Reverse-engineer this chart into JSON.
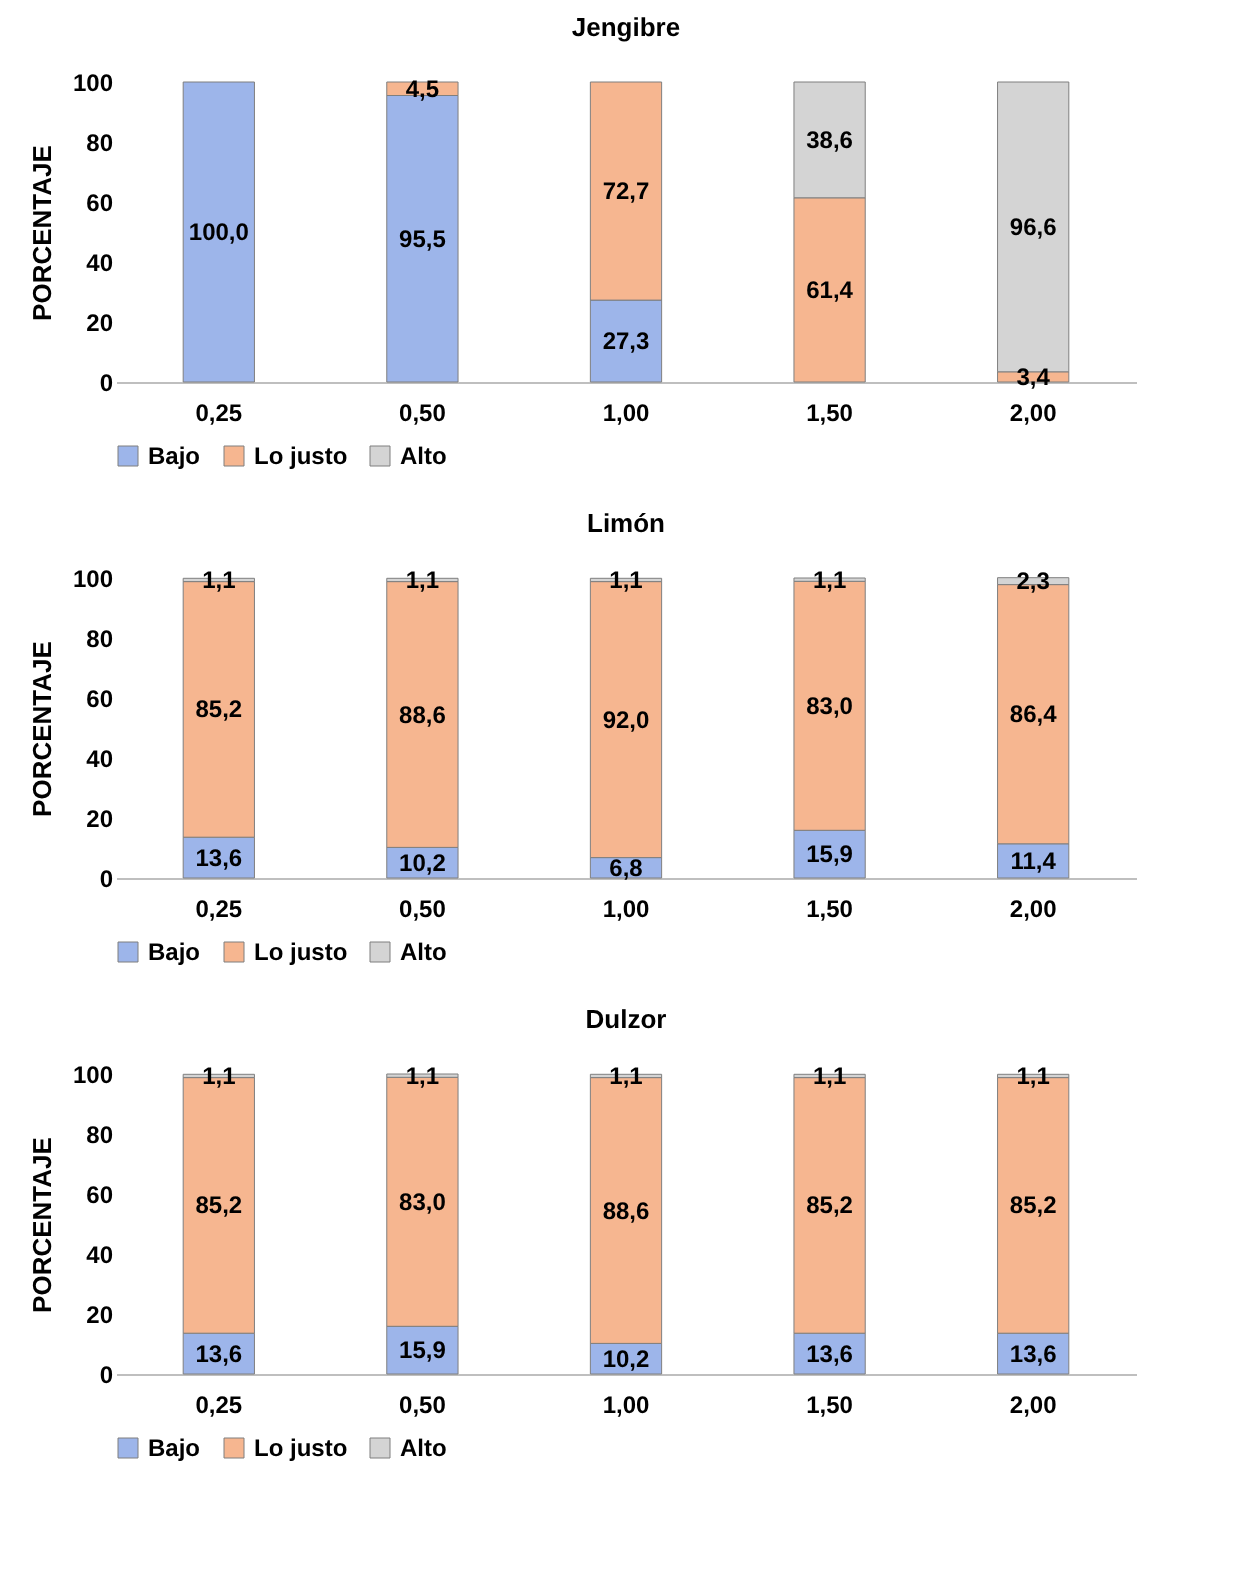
{
  "chart_data": [
    {
      "type": "bar",
      "title": "Jengibre",
      "ylabel": "PORCENTAJE",
      "categories": [
        "0,25",
        "0,50",
        "1,00",
        "1,50",
        "2,00"
      ],
      "stacked": true,
      "ylim": [
        0,
        100
      ],
      "yticks": [
        0,
        20,
        40,
        60,
        80,
        100
      ],
      "grid": false,
      "legend": "bottom",
      "series": [
        {
          "name": "Bajo",
          "color": "#9db5ea",
          "values": [
            100.0,
            95.5,
            27.3,
            null,
            null
          ],
          "value_labels": [
            "100,0",
            "95,5",
            "27,3",
            null,
            null
          ]
        },
        {
          "name": "Lo justo",
          "color": "#f6b690",
          "values": [
            null,
            4.5,
            72.7,
            61.4,
            3.4
          ],
          "value_labels": [
            null,
            "4,5",
            "72,7",
            "61,4",
            "3,4"
          ]
        },
        {
          "name": "Alto",
          "color": "#d4d4d4",
          "values": [
            null,
            null,
            null,
            38.6,
            96.6
          ],
          "value_labels": [
            null,
            null,
            null,
            "38,6",
            "96,6"
          ]
        }
      ]
    },
    {
      "type": "bar",
      "title": "Limón",
      "ylabel": "PORCENTAJE",
      "categories": [
        "0,25",
        "0,50",
        "1,00",
        "1,50",
        "2,00"
      ],
      "stacked": true,
      "ylim": [
        0,
        100
      ],
      "yticks": [
        0,
        20,
        40,
        60,
        80,
        100
      ],
      "grid": false,
      "legend": "bottom",
      "series": [
        {
          "name": "Bajo",
          "color": "#9db5ea",
          "values": [
            13.6,
            10.2,
            6.8,
            15.9,
            11.4
          ],
          "value_labels": [
            "13,6",
            "10,2",
            "6,8",
            "15,9",
            "11,4"
          ]
        },
        {
          "name": "Lo justo",
          "color": "#f6b690",
          "values": [
            85.2,
            88.6,
            92.0,
            83.0,
            86.4
          ],
          "value_labels": [
            "85,2",
            "88,6",
            "92,0",
            "83,0",
            "86,4"
          ]
        },
        {
          "name": "Alto",
          "color": "#d4d4d4",
          "values": [
            1.1,
            1.1,
            1.1,
            1.1,
            2.3
          ],
          "value_labels": [
            "1,1",
            "1,1",
            "1,1",
            "1,1",
            "2,3"
          ]
        }
      ]
    },
    {
      "type": "bar",
      "title": "Dulzor",
      "ylabel": "PORCENTAJE",
      "categories": [
        "0,25",
        "0,50",
        "1,00",
        "1,50",
        "2,00"
      ],
      "stacked": true,
      "ylim": [
        0,
        100
      ],
      "yticks": [
        0,
        20,
        40,
        60,
        80,
        100
      ],
      "grid": false,
      "legend": "bottom",
      "series": [
        {
          "name": "Bajo",
          "color": "#9db5ea",
          "values": [
            13.6,
            15.9,
            10.2,
            13.6,
            13.6
          ],
          "value_labels": [
            "13,6",
            "15,9",
            "10,2",
            "13,6",
            "13,6"
          ]
        },
        {
          "name": "Lo justo",
          "color": "#f6b690",
          "values": [
            85.2,
            83.0,
            88.6,
            85.2,
            85.2
          ],
          "value_labels": [
            "85,2",
            "83,0",
            "88,6",
            "85,2",
            "85,2"
          ]
        },
        {
          "name": "Alto",
          "color": "#d4d4d4",
          "values": [
            1.1,
            1.1,
            1.1,
            1.1,
            1.1
          ],
          "value_labels": [
            "1,1",
            "1,1",
            "1,1",
            "1,1",
            "1,1"
          ]
        }
      ]
    }
  ]
}
